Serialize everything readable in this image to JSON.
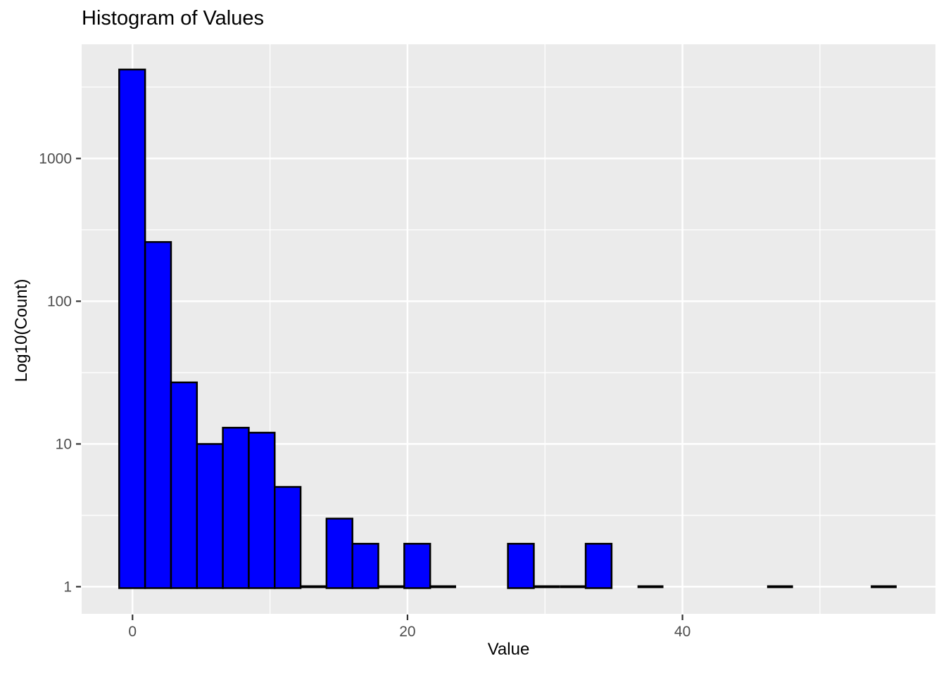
{
  "chart": {
    "title": "Histogram of Values",
    "x_axis": {
      "label": "Value",
      "ticks": [
        0,
        20,
        40
      ],
      "minor_ticks": [
        10,
        30,
        50
      ],
      "range": [
        -3.7,
        58.4
      ]
    },
    "y_axis": {
      "label": "Log10(Count)",
      "scale": "log10",
      "ticks": [
        1,
        10,
        100,
        1000
      ],
      "minor_ticks_log": [
        0.5,
        1.5,
        2.5,
        3.5
      ],
      "range_log": [
        -0.19,
        3.8
      ]
    },
    "colors": {
      "page_bg": "#ffffff",
      "panel_bg": "#ebebeb",
      "grid": "#ffffff",
      "bar_fill": "#0000ff",
      "bar_stroke": "#000000",
      "axis_tick": "#333333",
      "tick_label": "#4d4d4d",
      "title_text": "#000000"
    }
  },
  "chart_data": {
    "type": "bar",
    "subtype": "histogram",
    "title": "Histogram of Values",
    "xlabel": "Value",
    "ylabel": "Log10(Count)",
    "y_scale": "log10",
    "grid": "on",
    "legend": "none",
    "bin_start": -0.97,
    "bin_width": 1.885,
    "counts": [
      4200,
      260,
      27,
      10,
      13,
      12,
      5,
      1,
      3,
      2,
      1,
      2,
      1,
      0,
      0,
      2,
      1,
      1,
      2,
      0,
      1,
      0,
      0,
      0,
      0,
      1,
      0,
      0,
      0,
      1
    ],
    "xlim": [
      -3.7,
      58.4
    ],
    "ylim_log": [
      -0.19,
      3.8
    ],
    "x_tick_values": [
      0,
      20,
      40
    ],
    "y_tick_values": [
      1,
      10,
      100,
      1000
    ]
  }
}
